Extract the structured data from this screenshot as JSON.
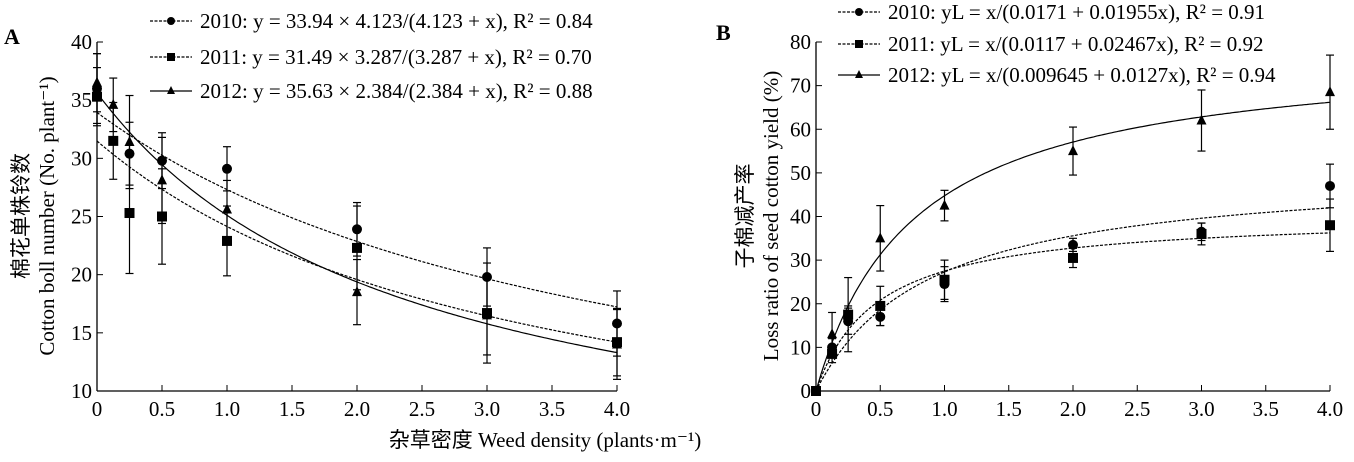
{
  "chart_data": [
    {
      "type": "scatter",
      "panel": "A",
      "ylabel_cn": "棉花单株铃数",
      "ylabel": "Cotton boll number (No. plant⁻¹)",
      "xlim": [
        0,
        4.0
      ],
      "ylim": [
        10,
        40
      ],
      "xticks": [
        "0",
        "0.5",
        "1.0",
        "1.5",
        "2.0",
        "2.5",
        "3.0",
        "3.5",
        "4.0"
      ],
      "yticks": [
        "10",
        "15",
        "20",
        "25",
        "30",
        "35",
        "40"
      ],
      "legend_position": "top-right",
      "series": [
        {
          "name": "2010",
          "marker": "circle",
          "dash": true,
          "legend": "2010: y = 33.94 × 4.123/(4.123 + x), R² = 0.84",
          "fit": {
            "form": "a*b/(b+x)",
            "a": 33.94,
            "b": 4.123
          },
          "x": [
            0,
            0.25,
            0.5,
            1,
            2,
            3,
            4
          ],
          "y": [
            36.0,
            30.4,
            29.8,
            29.1,
            23.9,
            19.8,
            15.8
          ],
          "err": [
            3.0,
            2.7,
            2.4,
            1.9,
            2.3,
            2.5,
            2.8
          ]
        },
        {
          "name": "2011",
          "marker": "square",
          "dash": true,
          "legend": "2011: y = 31.49 × 3.287/(3.287 + x), R² = 0.70",
          "fit": {
            "form": "a*b/(b+x)",
            "a": 31.49,
            "b": 3.287
          },
          "x": [
            0,
            0.125,
            0.25,
            0.5,
            1,
            2,
            3,
            4
          ],
          "y": [
            35.3,
            31.5,
            25.3,
            25.0,
            22.9,
            22.3,
            16.7,
            14.2
          ],
          "err": [
            2.5,
            3.3,
            5.2,
            4.1,
            3.0,
            3.6,
            4.3,
            2.9
          ]
        },
        {
          "name": "2012",
          "marker": "triangle",
          "dash": false,
          "legend": "2012: y = 35.63 × 2.384/(2.384 + x), R² = 0.88",
          "fit": {
            "form": "a*b/(b+x)",
            "a": 35.63,
            "b": 2.384
          },
          "x": [
            0,
            0.125,
            0.25,
            0.5,
            1,
            2,
            3,
            4
          ],
          "y": [
            36.5,
            34.6,
            31.4,
            28.1,
            25.6,
            18.5,
            16.5,
            14.0
          ],
          "err": [
            2.5,
            2.3,
            4.0,
            3.7,
            2.5,
            2.8,
            3.4,
            3.0
          ]
        }
      ]
    },
    {
      "type": "scatter",
      "panel": "B",
      "ylabel_cn": "子棉减产率",
      "ylabel": "Loss ratio of seed cotton yield (%)",
      "xlim": [
        0,
        4.0
      ],
      "ylim": [
        0,
        80
      ],
      "xticks": [
        "0",
        "0.5",
        "1.0",
        "1.5",
        "2.0",
        "2.5",
        "3.0",
        "3.5",
        "4.0"
      ],
      "yticks": [
        "0",
        "10",
        "20",
        "30",
        "40",
        "50",
        "60",
        "70",
        "80"
      ],
      "legend_position": "top",
      "series": [
        {
          "name": "2010",
          "marker": "circle",
          "dash": true,
          "legend": "2010: yL = x/(0.0171 + 0.01955x), R² = 0.91",
          "fit": {
            "form": "x/(a+b*x)",
            "a": 0.0171,
            "b": 0.01955
          },
          "x": [
            0,
            0.125,
            0.25,
            0.5,
            1,
            2,
            3,
            4
          ],
          "y": [
            0,
            10,
            16,
            17,
            24.5,
            33.5,
            36.5,
            47
          ],
          "err": [
            0,
            2,
            3,
            2,
            4,
            1.5,
            2,
            5
          ]
        },
        {
          "name": "2011",
          "marker": "square",
          "dash": true,
          "legend": "2011: yL = x/(0.0117 + 0.02467x), R² = 0.92",
          "fit": {
            "form": "x/(a+b*x)",
            "a": 0.0117,
            "b": 0.02467
          },
          "x": [
            0,
            0.125,
            0.25,
            0.5,
            1,
            2,
            3,
            4
          ],
          "y": [
            0,
            8.5,
            17.5,
            19.5,
            25.5,
            30.5,
            36,
            38
          ],
          "err": [
            0,
            2,
            2,
            4.5,
            4.5,
            2.2,
            2.5,
            6
          ]
        },
        {
          "name": "2012",
          "marker": "triangle",
          "dash": false,
          "legend": "2012: yL = x/(0.009645 + 0.0127x), R² = 0.94",
          "fit": {
            "form": "x/(a+b*x)",
            "a": 0.009645,
            "b": 0.0127
          },
          "x": [
            0,
            0.125,
            0.25,
            0.5,
            1,
            2,
            3,
            4
          ],
          "y": [
            0,
            13,
            17.5,
            35,
            42.5,
            55,
            62,
            68.5
          ],
          "err": [
            0,
            5,
            8.5,
            7.5,
            3.5,
            5.5,
            7,
            8.5
          ]
        }
      ]
    }
  ],
  "shared_xlabel": "杂草密度 Weed density (plants·m⁻¹)"
}
